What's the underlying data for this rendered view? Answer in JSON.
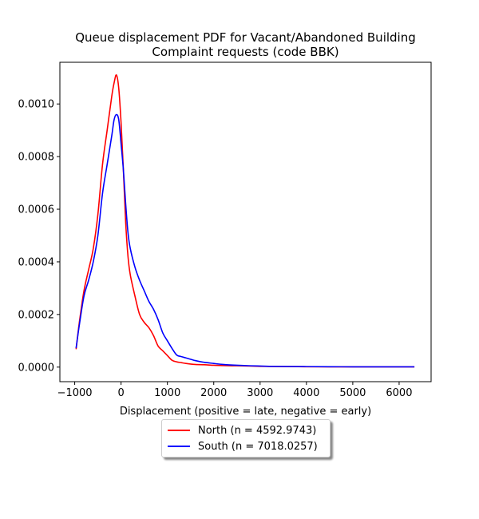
{
  "chart_data": {
    "type": "line",
    "title_lines": [
      "Queue displacement PDF for Vacant/Abandoned Building",
      "Complaint  requests (code BBK)"
    ],
    "xlabel": "Displacement (positive = late, negative = early)",
    "ylabel": "",
    "xlim": [
      -1320,
      6690
    ],
    "ylim": [
      -5.53e-05,
      0.0011584
    ],
    "x_ticks": [
      -1000,
      0,
      1000,
      2000,
      3000,
      4000,
      5000,
      6000
    ],
    "x_tick_labels": [
      "−1000",
      "0",
      "1000",
      "2000",
      "3000",
      "4000",
      "5000",
      "6000"
    ],
    "y_ticks": [
      0,
      0.0002,
      0.0004,
      0.0006,
      0.0008,
      0.001
    ],
    "y_tick_labels": [
      "0.0000",
      "0.0002",
      "0.0004",
      "0.0006",
      "0.0008",
      "0.0010"
    ],
    "grid": false,
    "legend_position": "below-center",
    "series": [
      {
        "name": "North (n = 4592.9743)",
        "color": "#ff0000",
        "x": [
          -970,
          -900,
          -800,
          -700,
          -600,
          -500,
          -400,
          -300,
          -200,
          -150,
          -100,
          -50,
          0,
          50,
          100,
          150,
          200,
          300,
          400,
          500,
          600,
          700,
          800,
          900,
          1000,
          1100,
          1200,
          1300,
          1400,
          1600,
          1800,
          2000,
          2200,
          2500,
          2800,
          3000,
          3200,
          3500,
          4000,
          4500,
          5000,
          5500,
          6000,
          6330
        ],
        "y": [
          6.8e-05,
          0.00017,
          0.00029,
          0.00037,
          0.00045,
          0.00058,
          0.00077,
          0.0009,
          0.00103,
          0.00108,
          0.00111,
          0.00106,
          0.00093,
          0.00075,
          0.00055,
          0.00042,
          0.00035,
          0.00027,
          0.0002,
          0.00017,
          0.00015,
          0.00012,
          8e-05,
          6.2e-05,
          4.4e-05,
          2.6e-05,
          2e-05,
          1.7e-05,
          1.4e-05,
          1e-05,
          9e-06,
          7e-06,
          6e-06,
          5e-06,
          4e-06,
          3e-06,
          2.5e-06,
          2e-06,
          1.5e-06,
          1e-06,
          1e-06,
          1e-06,
          1e-06,
          1e-06
        ]
      },
      {
        "name": "South (n = 7018.0257)",
        "color": "#0000ff",
        "x": [
          -970,
          -900,
          -800,
          -700,
          -600,
          -500,
          -400,
          -300,
          -200,
          -150,
          -100,
          -50,
          0,
          50,
          100,
          150,
          200,
          300,
          400,
          500,
          600,
          700,
          800,
          900,
          1000,
          1100,
          1200,
          1300,
          1400,
          1600,
          1800,
          2000,
          2200,
          2500,
          2800,
          3000,
          3200,
          3500,
          4000,
          4500,
          5000,
          5500,
          6000,
          6330
        ],
        "y": [
          7.2e-05,
          0.00016,
          0.00027,
          0.00033,
          0.0004,
          0.0005,
          0.00066,
          0.00077,
          0.00088,
          0.00094,
          0.00096,
          0.00094,
          0.00085,
          0.00075,
          0.00062,
          0.00051,
          0.00045,
          0.00038,
          0.00033,
          0.00029,
          0.00025,
          0.00022,
          0.00018,
          0.00013,
          0.0001,
          7.1e-05,
          4.6e-05,
          4e-05,
          3.5e-05,
          2.5e-05,
          1.8e-05,
          1.4e-05,
          1e-05,
          7e-06,
          5e-06,
          4e-06,
          3e-06,
          2.5e-06,
          2e-06,
          1.5e-06,
          1e-06,
          1e-06,
          1e-06,
          1e-06
        ]
      }
    ]
  },
  "legend": {
    "entries": [
      {
        "label": "North (n = 4592.9743)",
        "color": "#ff0000"
      },
      {
        "label": "South (n = 7018.0257)",
        "color": "#0000ff"
      }
    ]
  }
}
